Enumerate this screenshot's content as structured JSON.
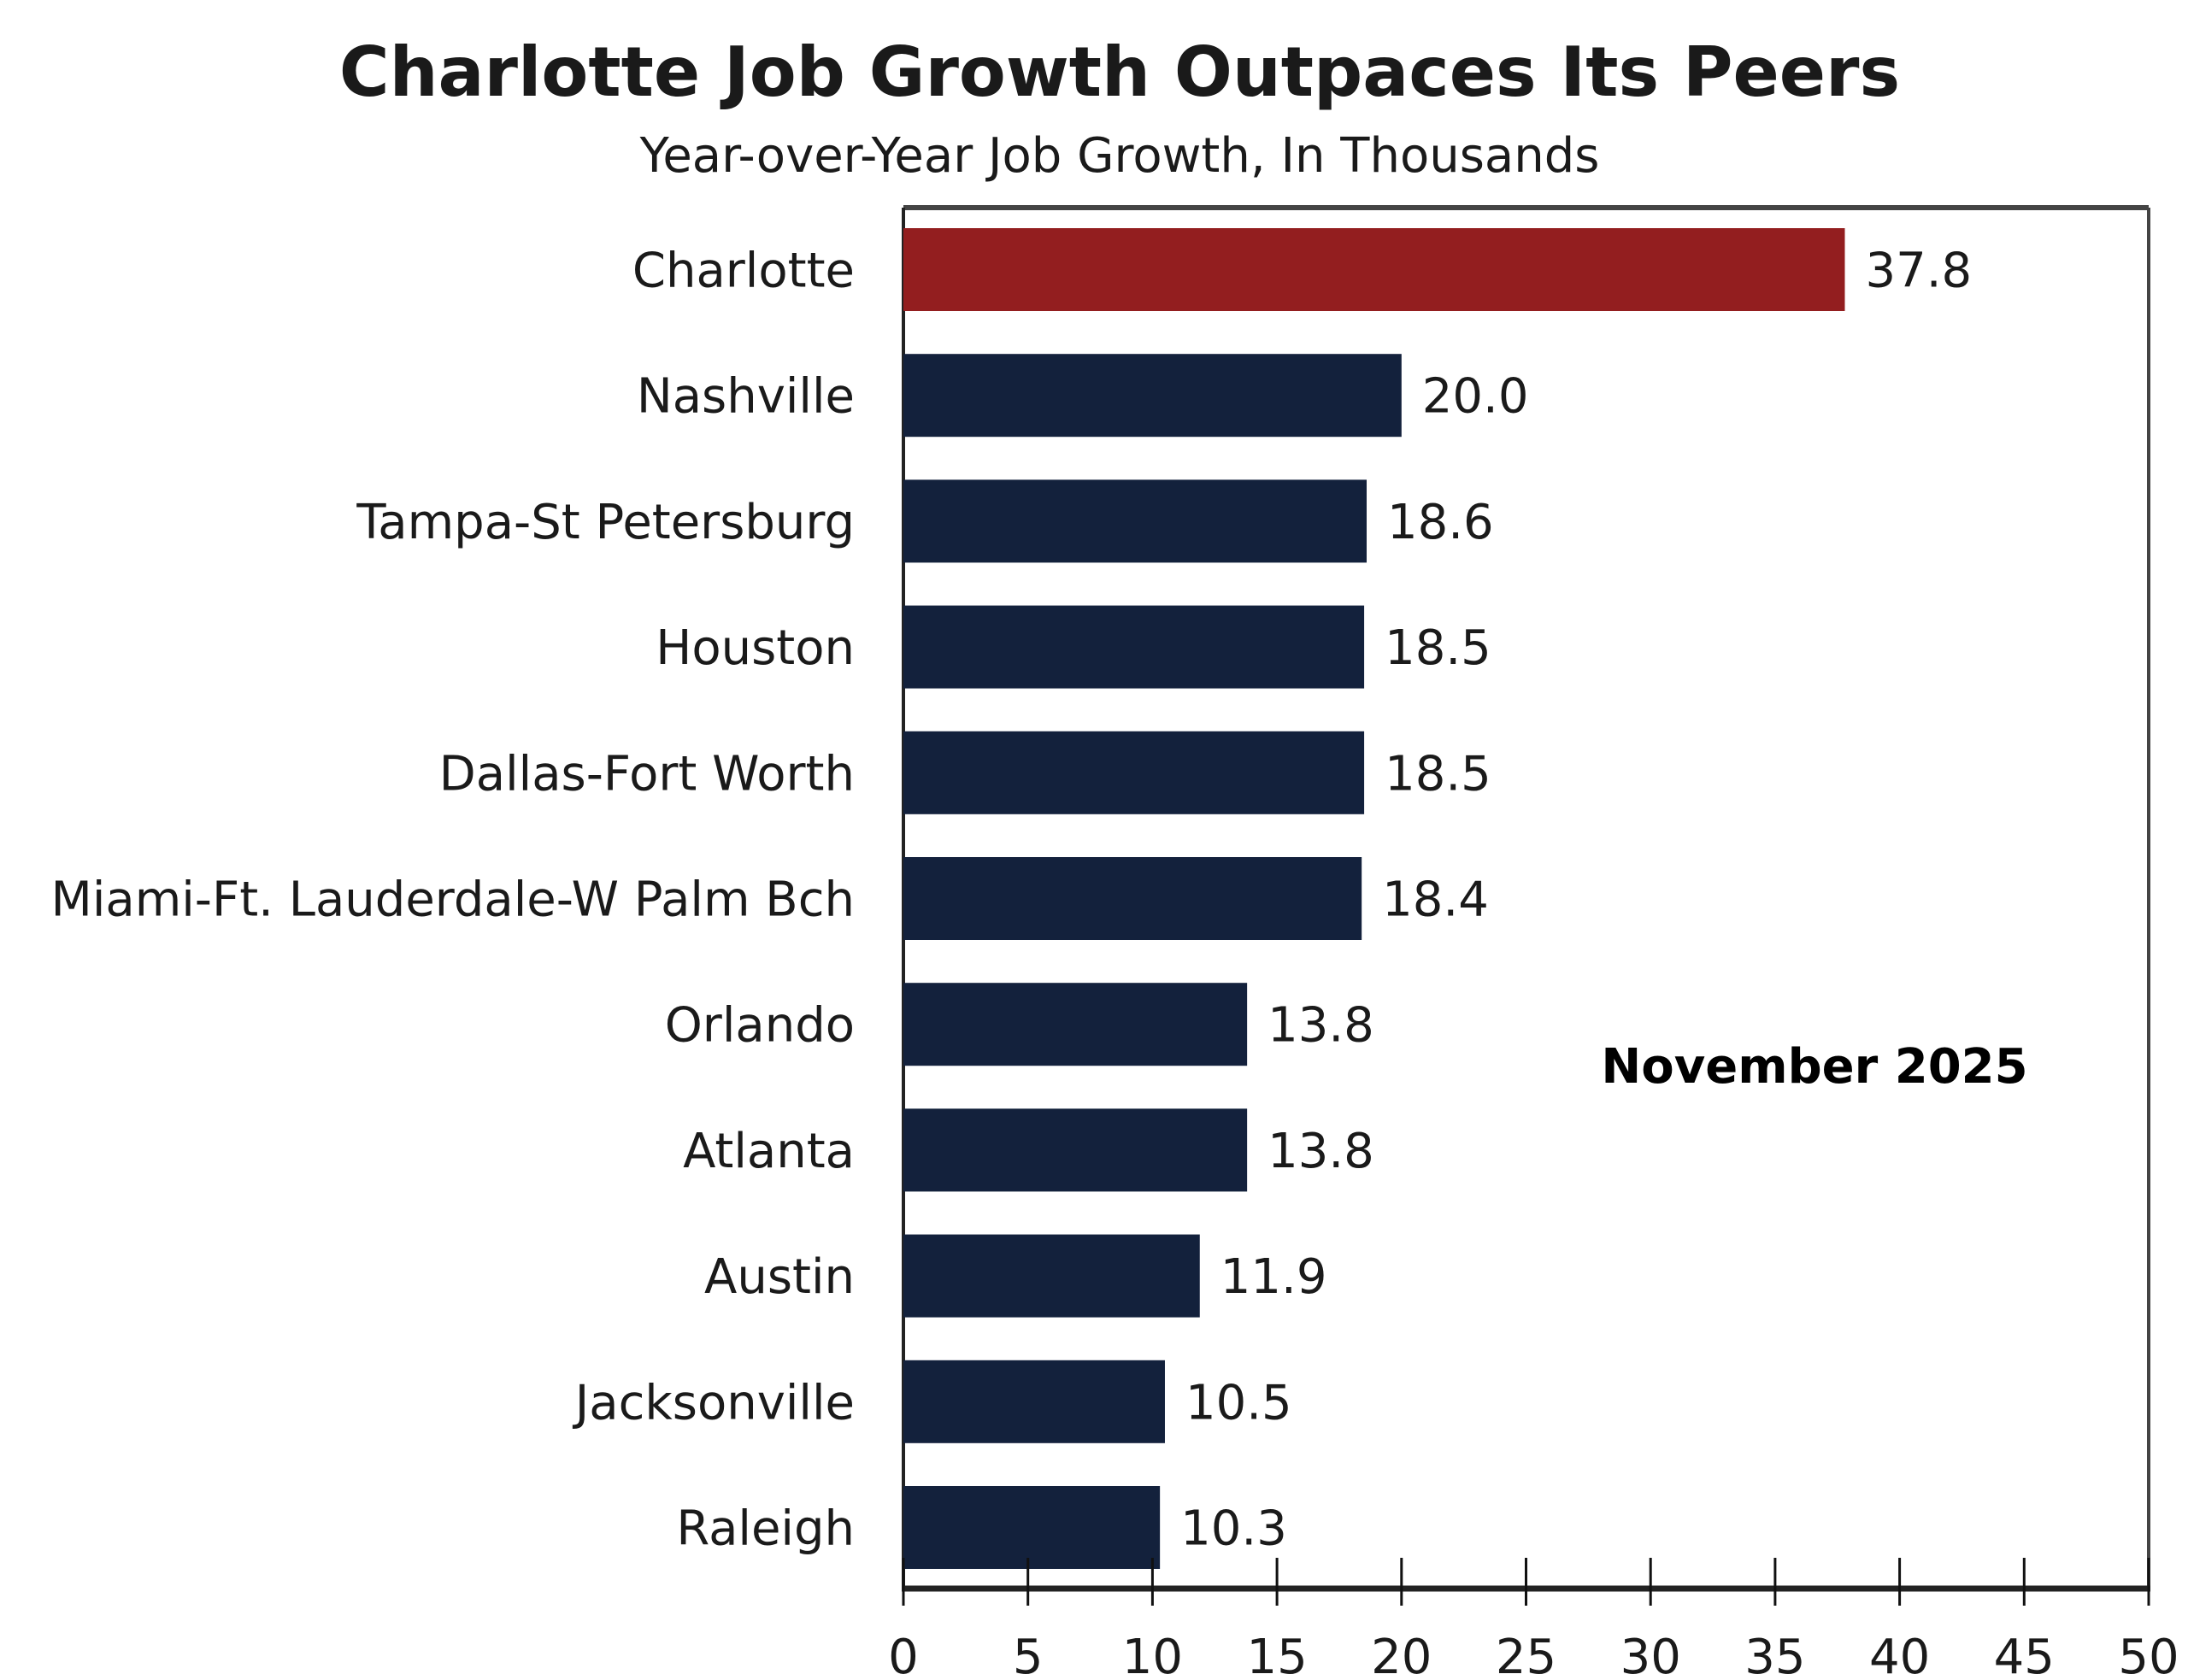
{
  "chart_data": {
    "type": "bar",
    "orientation": "horizontal",
    "title": "Charlotte Job Growth Outpaces Its Peers",
    "subtitle": "Year-over-Year Job Growth, In Thousands",
    "xlabel": "",
    "ylabel": "",
    "categories": [
      "Charlotte",
      "Nashville",
      "Tampa-St Petersburg",
      "Houston",
      "Dallas-Fort Worth",
      "Miami-Ft. Lauderdale-W Palm Bch",
      "Orlando",
      "Atlanta",
      "Austin",
      "Jacksonville",
      "Raleigh"
    ],
    "values": [
      37.8,
      20.0,
      18.6,
      18.5,
      18.5,
      18.4,
      13.8,
      13.8,
      11.9,
      10.5,
      10.3
    ],
    "value_labels": [
      "37.8",
      "20.0",
      "18.6",
      "18.5",
      "18.5",
      "18.4",
      "13.8",
      "13.8",
      "11.9",
      "10.5",
      "10.3"
    ],
    "highlight_category": "Charlotte",
    "colors": {
      "highlight": "#931e1f",
      "default": "#13213c",
      "frame": "#444444"
    },
    "xlim": [
      0,
      50
    ],
    "x_ticks": [
      0,
      5,
      10,
      15,
      20,
      25,
      30,
      35,
      40,
      45,
      50
    ],
    "x_tick_labels": [
      "0",
      "5",
      "10",
      "15",
      "20",
      "25",
      "30",
      "35",
      "40",
      "45",
      "50"
    ],
    "grid": false,
    "annotation": "November 2025",
    "annotation_placement": "right-middle"
  }
}
